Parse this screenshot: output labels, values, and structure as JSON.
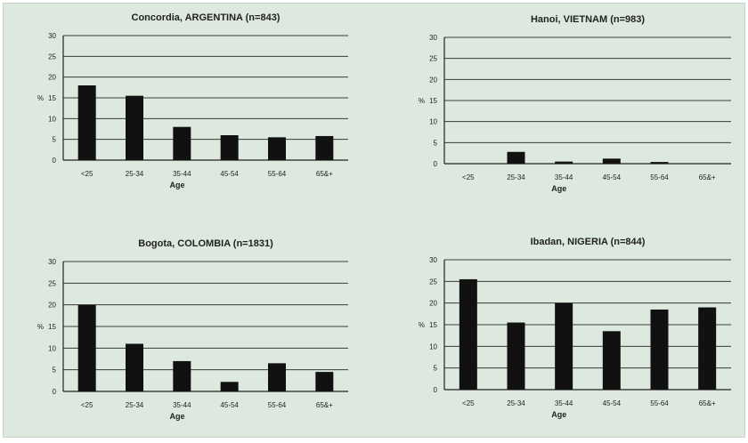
{
  "chart_data": [
    {
      "type": "bar",
      "title": "Concordia, ARGENTINA (n=843)",
      "xlabel": "Age",
      "ylabel": "%",
      "ylim": [
        0,
        30
      ],
      "yticks": [
        0,
        5,
        10,
        15,
        20,
        25,
        30
      ],
      "grid": true,
      "categories": [
        "<25",
        "25-34",
        "35-44",
        "45-54",
        "55-64",
        "65&+"
      ],
      "values": [
        18,
        15.5,
        8,
        6,
        5.5,
        5.8
      ]
    },
    {
      "type": "bar",
      "title": "Hanoi, VIETNAM (n=983)",
      "xlabel": "Age",
      "ylabel": "%",
      "ylim": [
        0,
        30
      ],
      "yticks": [
        0,
        5,
        10,
        15,
        20,
        25,
        30
      ],
      "grid": true,
      "categories": [
        "<25",
        "25-34",
        "35-44",
        "45-54",
        "55-64",
        "65&+"
      ],
      "values": [
        0,
        2.8,
        0.5,
        1.2,
        0.4,
        0
      ]
    },
    {
      "type": "bar",
      "title": "Bogota, COLOMBIA (n=1831)",
      "xlabel": "Age",
      "ylabel": "%",
      "ylim": [
        0,
        30
      ],
      "yticks": [
        0,
        5,
        10,
        15,
        20,
        25,
        30
      ],
      "grid": true,
      "categories": [
        "<25",
        "25-34",
        "35-44",
        "45-54",
        "55-64",
        "65&+"
      ],
      "values": [
        20,
        11,
        7,
        2.2,
        6.5,
        4.5
      ]
    },
    {
      "type": "bar",
      "title": "Ibadan, NIGERIA (n=844)",
      "xlabel": "Age",
      "ylabel": "%",
      "ylim": [
        0,
        30
      ],
      "yticks": [
        0,
        5,
        10,
        15,
        20,
        25,
        30
      ],
      "grid": true,
      "categories": [
        "<25",
        "25-34",
        "35-44",
        "45-54",
        "55-64",
        "65&+"
      ],
      "values": [
        25.5,
        15.5,
        20,
        13.5,
        18.5,
        19
      ]
    }
  ]
}
